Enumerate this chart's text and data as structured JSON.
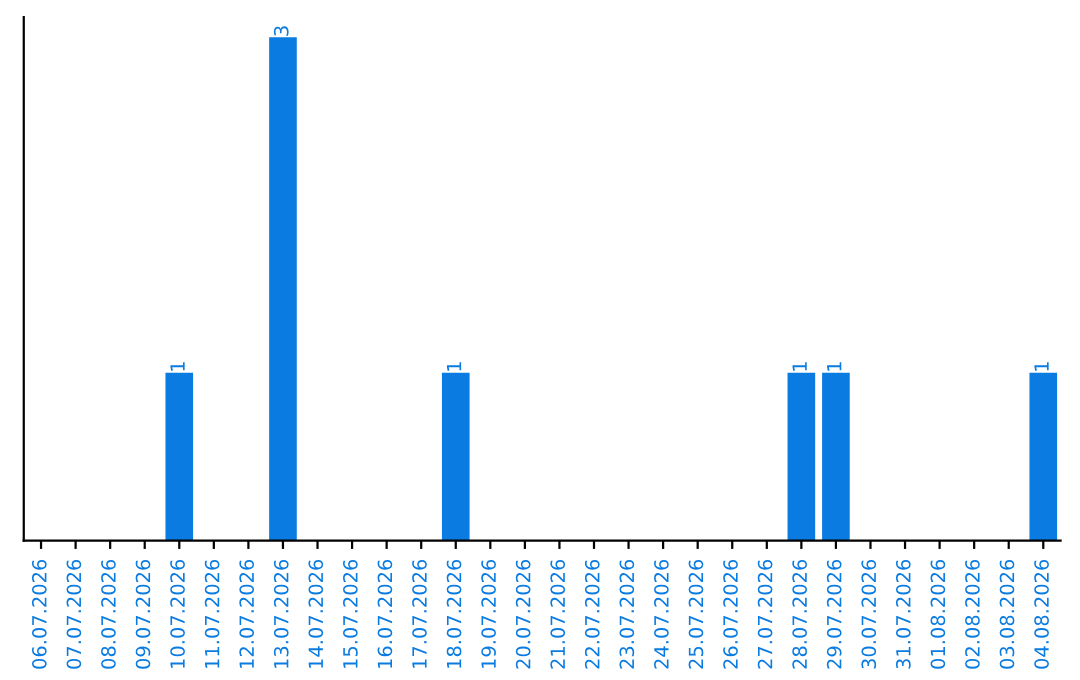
{
  "chart_data": {
    "type": "bar",
    "categories": [
      "06.07.2026",
      "07.07.2026",
      "08.07.2026",
      "09.07.2026",
      "10.07.2026",
      "11.07.2026",
      "12.07.2026",
      "13.07.2026",
      "14.07.2026",
      "15.07.2026",
      "16.07.2026",
      "17.07.2026",
      "18.07.2026",
      "19.07.2026",
      "20.07.2026",
      "21.07.2026",
      "22.07.2026",
      "23.07.2026",
      "24.07.2026",
      "25.07.2026",
      "26.07.2026",
      "27.07.2026",
      "28.07.2026",
      "29.07.2026",
      "30.07.2026",
      "31.07.2026",
      "01.08.2026",
      "02.08.2026",
      "03.08.2026",
      "04.08.2026"
    ],
    "values": [
      0,
      0,
      0,
      0,
      1,
      0,
      0,
      3,
      0,
      0,
      0,
      0,
      1,
      0,
      0,
      0,
      0,
      0,
      0,
      0,
      0,
      0,
      1,
      1,
      0,
      0,
      0,
      0,
      0,
      1
    ],
    "value_labels": [
      null,
      null,
      null,
      null,
      "1",
      null,
      null,
      "3",
      null,
      null,
      null,
      null,
      "1",
      null,
      null,
      null,
      null,
      null,
      null,
      null,
      null,
      null,
      "1",
      "1",
      null,
      null,
      null,
      null,
      null,
      "1"
    ],
    "color": "#0a7be0",
    "tick_labels": "x",
    "grid": false,
    "legend": false
  }
}
